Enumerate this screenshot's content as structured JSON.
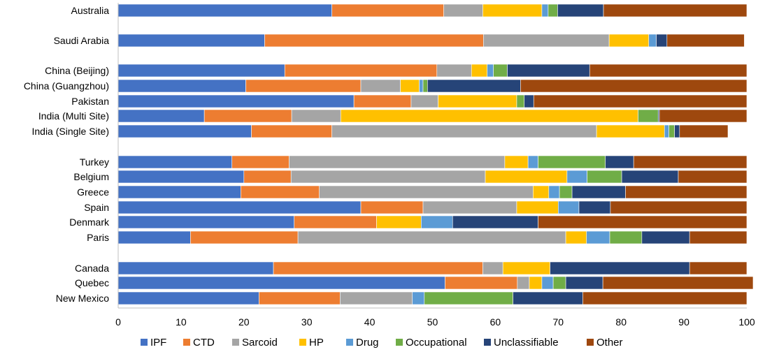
{
  "chart_data": {
    "type": "bar",
    "orientation": "horizontal",
    "stacked": true,
    "title": "",
    "xlabel": "",
    "ylabel": "",
    "xlim": [
      0,
      100
    ],
    "xticks": [
      0,
      10,
      20,
      30,
      40,
      50,
      60,
      70,
      80,
      90,
      100
    ],
    "grid": false,
    "legend_position": "bottom",
    "categories": [
      "Australia",
      "Saudi Arabia",
      "China (Beijing)",
      "China (Guangzhou)",
      "Pakistan",
      "India (Multi Site)",
      "India (Single Site)",
      "Turkey",
      "Belgium",
      "Greece",
      "Spain",
      "Denmark",
      "Paris",
      "Canada",
      "Quebec",
      "New Mexico"
    ],
    "series": [
      {
        "name": "IPF",
        "color": "#4472C4",
        "values": [
          34,
          23.3,
          26.5,
          20.3,
          37.5,
          13.7,
          21.2,
          18.1,
          20,
          19.5,
          38.6,
          28,
          11.5,
          24.7,
          52,
          22.4
        ]
      },
      {
        "name": "CTD",
        "color": "#ED7D31",
        "values": [
          17.8,
          34.8,
          24.2,
          18.3,
          9.1,
          13.9,
          12.8,
          9.1,
          7.5,
          12.5,
          9.9,
          13.1,
          17.1,
          33.3,
          11.5,
          12.9
        ]
      },
      {
        "name": "Sarcoid",
        "color": "#A5A5A5",
        "values": [
          6.2,
          20,
          5.5,
          6.3,
          4.3,
          7.8,
          42.1,
          34.3,
          30.9,
          34,
          14.9,
          0,
          42.6,
          3.2,
          1.9,
          11.5
        ]
      },
      {
        "name": "HP",
        "color": "#FFC000",
        "values": [
          9.4,
          6.3,
          2.5,
          3,
          12.5,
          47.3,
          10.8,
          3.7,
          13,
          2.5,
          6.6,
          7.1,
          3.3,
          7.5,
          2,
          0
        ]
      },
      {
        "name": "Drug",
        "color": "#5B9BD5",
        "values": [
          1,
          1.2,
          1,
          0.6,
          0,
          0,
          0.7,
          1.6,
          3.2,
          1.7,
          3.3,
          5,
          3.7,
          0,
          1.8,
          1.9
        ]
      },
      {
        "name": "Occupational",
        "color": "#70AD47",
        "values": [
          1.5,
          0,
          2.2,
          0.7,
          1.2,
          3.2,
          0.9,
          10.7,
          5.5,
          2,
          0,
          0,
          5.1,
          0,
          2,
          14.1
        ]
      },
      {
        "name": "Unclassifiable",
        "color": "#264478",
        "values": [
          7.3,
          1.7,
          13.1,
          14.8,
          1.5,
          0.2,
          0.8,
          4.5,
          9,
          8.5,
          5,
          13.6,
          7.6,
          22.2,
          5.9,
          11.1
        ]
      },
      {
        "name": "Other",
        "color": "#9E480E",
        "values": [
          22.8,
          12.3,
          25,
          36,
          33.9,
          13.9,
          7.7,
          18,
          10.9,
          19.3,
          21.7,
          33.2,
          9.1,
          9.1,
          23.9,
          26.1
        ]
      }
    ]
  }
}
